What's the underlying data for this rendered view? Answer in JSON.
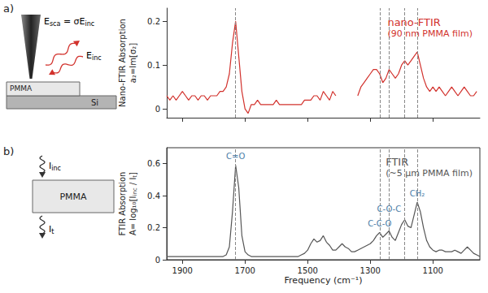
{
  "panel_labels": [
    "a)",
    "b)"
  ],
  "schematic_a": {
    "layers": [
      "PMMA",
      "Si"
    ],
    "scattered_field": [
      {
        "text": "E"
      },
      {
        "text": "sca",
        "sub": true
      },
      {
        "text": " = σE"
      },
      {
        "text": "inc",
        "sub": true
      }
    ],
    "incident_field": [
      {
        "text": "E"
      },
      {
        "text": "inc",
        "sub": true
      }
    ]
  },
  "schematic_b": {
    "layer": "PMMA",
    "incident": [
      {
        "text": "I"
      },
      {
        "text": "inc",
        "sub": true
      }
    ],
    "transmitted": [
      {
        "text": "I"
      },
      {
        "text": "t",
        "sub": true
      }
    ]
  },
  "chart_data": [
    {
      "type": "line",
      "title": "nano-FTIR",
      "subtitle": "(90 nm PMMA film)",
      "y_label": [
        [
          {
            "text": "Nano-FTIR Absorption"
          }
        ],
        [
          {
            "text": "a₂=Im[σ₂]"
          }
        ]
      ],
      "color": "#d2322d",
      "grid": false,
      "tick_labels": "y",
      "xlim": [
        1950,
        950
      ],
      "xticks": [
        1900,
        1700,
        1500,
        1300,
        1100
      ],
      "ylim": [
        -0.02,
        0.23
      ],
      "yticks": [
        0,
        0.1,
        0.2
      ],
      "vlines": [
        1730,
        1270,
        1240,
        1190,
        1150
      ],
      "x": [
        1950,
        1940,
        1930,
        1920,
        1910,
        1900,
        1890,
        1880,
        1870,
        1860,
        1850,
        1840,
        1830,
        1820,
        1810,
        1800,
        1790,
        1780,
        1770,
        1760,
        1750,
        1740,
        1730,
        1720,
        1710,
        1700,
        1690,
        1680,
        1670,
        1660,
        1650,
        1640,
        1630,
        1620,
        1610,
        1600,
        1590,
        1580,
        1570,
        1560,
        1550,
        1540,
        1530,
        1520,
        1510,
        1500,
        1490,
        1480,
        1470,
        1460,
        1450,
        1440,
        1430,
        1420,
        1410,
        1400,
        1390,
        1380,
        1370,
        1360,
        1350,
        1340,
        1330,
        1320,
        1310,
        1300,
        1290,
        1280,
        1270,
        1260,
        1250,
        1240,
        1230,
        1220,
        1210,
        1200,
        1190,
        1180,
        1170,
        1160,
        1150,
        1140,
        1130,
        1120,
        1110,
        1100,
        1090,
        1080,
        1070,
        1060,
        1050,
        1040,
        1030,
        1020,
        1010,
        1000,
        990,
        980,
        970,
        960
      ],
      "values": [
        0.03,
        0.02,
        0.03,
        0.02,
        0.03,
        0.04,
        0.03,
        0.02,
        0.03,
        0.03,
        0.02,
        0.03,
        0.03,
        0.02,
        0.03,
        0.03,
        0.03,
        0.04,
        0.04,
        0.05,
        0.08,
        0.15,
        0.2,
        0.12,
        0.04,
        0.0,
        -0.01,
        0.01,
        0.01,
        0.02,
        0.01,
        0.01,
        0.01,
        0.01,
        0.01,
        0.02,
        0.01,
        0.01,
        0.01,
        0.01,
        0.01,
        0.01,
        0.01,
        0.01,
        0.02,
        0.02,
        0.02,
        0.03,
        0.03,
        0.02,
        0.04,
        0.03,
        0.02,
        0.04,
        0.03,
        null,
        null,
        null,
        null,
        null,
        null,
        0.03,
        0.05,
        0.06,
        0.07,
        0.08,
        0.09,
        0.09,
        0.08,
        0.06,
        0.07,
        0.09,
        0.08,
        0.07,
        0.08,
        0.1,
        0.11,
        0.1,
        0.11,
        0.12,
        0.13,
        0.1,
        0.07,
        0.05,
        0.04,
        0.05,
        0.04,
        0.05,
        0.04,
        0.03,
        0.04,
        0.05,
        0.04,
        0.03,
        0.04,
        0.05,
        0.04,
        0.03,
        0.03,
        0.04
      ]
    },
    {
      "type": "line",
      "title": "FTIR",
      "subtitle": "(~5 µm PMMA film)",
      "x_label": "Frequency (cm⁻¹)",
      "y_label": [
        [
          {
            "text": "FTIR Absorption"
          }
        ],
        [
          {
            "text": "A= log₁₀[I"
          },
          {
            "text": "inc",
            "sub": true
          },
          {
            "text": " / I"
          },
          {
            "text": "t",
            "sub": true
          },
          {
            "text": "]"
          }
        ]
      ],
      "color": "#555555",
      "grid": false,
      "xlim": [
        1950,
        950
      ],
      "xticks": [
        1900,
        1700,
        1500,
        1300,
        1100
      ],
      "ylim": [
        0,
        0.7
      ],
      "yticks": [
        0,
        0.2,
        0.4,
        0.6
      ],
      "vlines": [
        1730,
        1270,
        1240,
        1190,
        1150
      ],
      "peaks": [
        {
          "label": "C=O",
          "x": 1730
        },
        {
          "label": "C-C-O",
          "x": 1270
        },
        {
          "label": "C-O-C",
          "x": 1240
        },
        {
          "label": "CH₂",
          "x": 1150
        }
      ],
      "x": [
        1950,
        1940,
        1930,
        1920,
        1910,
        1900,
        1890,
        1880,
        1870,
        1860,
        1850,
        1840,
        1830,
        1820,
        1810,
        1800,
        1790,
        1780,
        1770,
        1760,
        1750,
        1740,
        1730,
        1720,
        1710,
        1700,
        1690,
        1680,
        1670,
        1660,
        1650,
        1640,
        1630,
        1620,
        1610,
        1600,
        1590,
        1580,
        1570,
        1560,
        1550,
        1540,
        1530,
        1520,
        1510,
        1500,
        1490,
        1480,
        1470,
        1460,
        1450,
        1440,
        1430,
        1420,
        1410,
        1400,
        1390,
        1380,
        1370,
        1360,
        1350,
        1340,
        1330,
        1320,
        1310,
        1300,
        1290,
        1280,
        1270,
        1260,
        1250,
        1240,
        1230,
        1220,
        1210,
        1200,
        1190,
        1180,
        1170,
        1160,
        1150,
        1140,
        1130,
        1120,
        1110,
        1100,
        1090,
        1080,
        1070,
        1060,
        1050,
        1040,
        1030,
        1020,
        1010,
        1000,
        990,
        980,
        970,
        960,
        950
      ],
      "values": [
        0.02,
        0.02,
        0.02,
        0.02,
        0.02,
        0.02,
        0.02,
        0.02,
        0.02,
        0.02,
        0.02,
        0.02,
        0.02,
        0.02,
        0.02,
        0.02,
        0.02,
        0.02,
        0.02,
        0.03,
        0.08,
        0.3,
        0.59,
        0.45,
        0.15,
        0.05,
        0.03,
        0.02,
        0.02,
        0.02,
        0.02,
        0.02,
        0.02,
        0.02,
        0.02,
        0.02,
        0.02,
        0.02,
        0.02,
        0.02,
        0.02,
        0.02,
        0.02,
        0.03,
        0.04,
        0.06,
        0.1,
        0.13,
        0.11,
        0.12,
        0.15,
        0.11,
        0.09,
        0.06,
        0.06,
        0.08,
        0.1,
        0.08,
        0.07,
        0.05,
        0.05,
        0.06,
        0.07,
        0.08,
        0.09,
        0.1,
        0.12,
        0.15,
        0.17,
        0.14,
        0.16,
        0.18,
        0.14,
        0.12,
        0.17,
        0.22,
        0.25,
        0.21,
        0.2,
        0.28,
        0.36,
        0.3,
        0.2,
        0.12,
        0.08,
        0.06,
        0.05,
        0.06,
        0.06,
        0.05,
        0.05,
        0.05,
        0.06,
        0.05,
        0.04,
        0.06,
        0.08,
        0.06,
        0.04,
        0.03,
        0.02
      ]
    }
  ]
}
